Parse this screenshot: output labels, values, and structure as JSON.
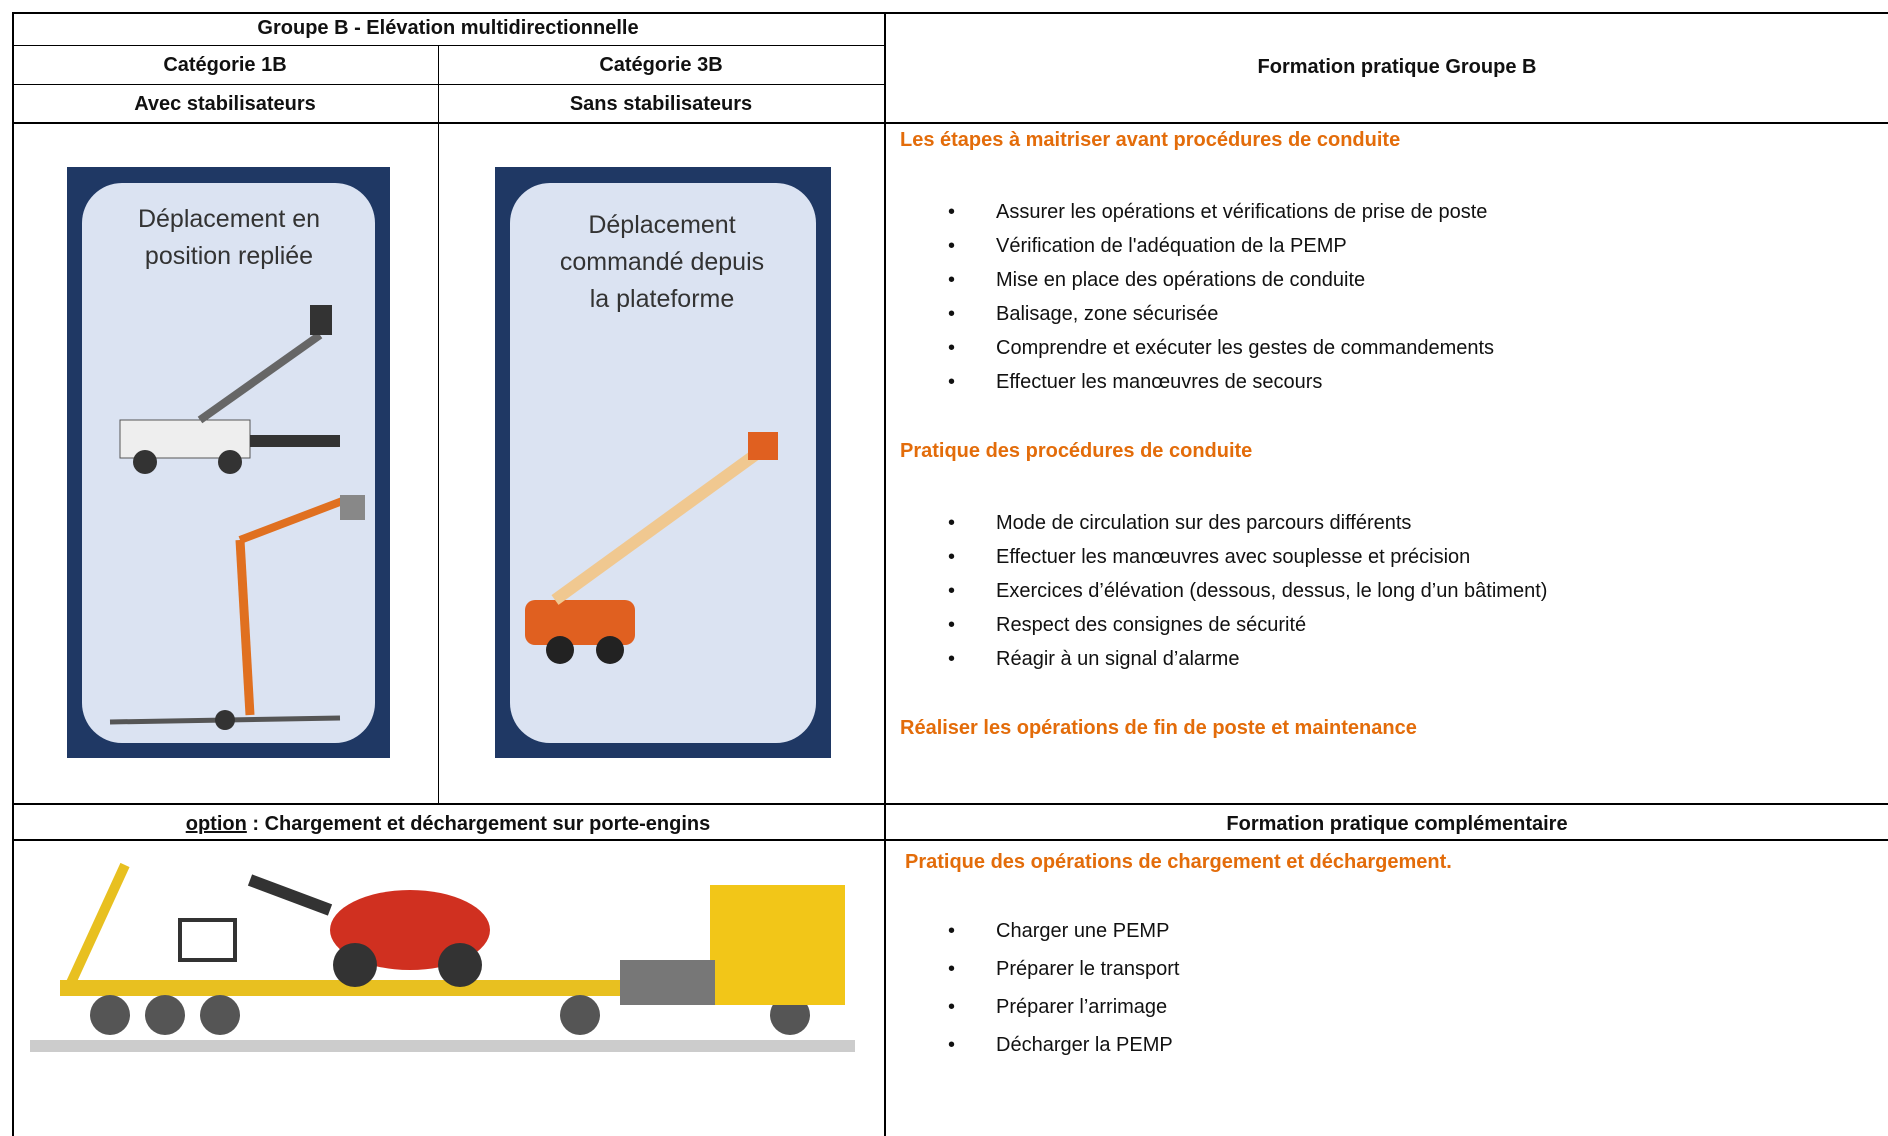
{
  "table": {
    "header": {
      "group": "Groupe B - Elévation multidirectionnelle",
      "cat1": "Catégorie 1B",
      "cat3": "Catégorie 3B",
      "stab1": "Avec stabilisateurs",
      "stab3": "Sans stabilisateurs",
      "right": "Formation pratique Groupe B"
    },
    "images": [
      [
        "Déplacement en",
        "position repliée"
      ],
      [
        "Déplacement",
        "commandé depuis",
        "la plateforme"
      ]
    ],
    "sections": [
      {
        "title": "Les  étapes à maitriser avant procédures de conduite",
        "items": [
          "Assurer les opérations et vérifications de prise de poste",
          "Vérification de l'adéquation de la PEMP",
          "Mise en place des opérations de conduite",
          "Balisage, zone sécurisée",
          "Comprendre et exécuter les gestes de commandements",
          "Effectuer les manœuvres de secours"
        ]
      },
      {
        "title": "Pratique des procédures de conduite",
        "items": [
          "Mode de circulation sur des parcours différents",
          "Effectuer les manœuvres avec souplesse et précision",
          "Exercices d’élévation (dessous, dessus, le long d’un bâtiment)",
          "Respect des consignes de sécurité",
          "Réagir à un signal d’alarme"
        ]
      },
      {
        "title": "Réaliser les opérations de fin de poste et maintenance",
        "items": []
      }
    ],
    "option": {
      "label": "option",
      "text": ": Chargement et déchargement sur porte-engins"
    },
    "complement": {
      "header": "Formation pratique complémentaire",
      "title": "Pratique des opérations de chargement et déchargement.",
      "items": [
        "Charger une PEMP",
        "Préparer le transport",
        "Préparer l’arrimage",
        "Décharger la PEMP"
      ]
    }
  }
}
